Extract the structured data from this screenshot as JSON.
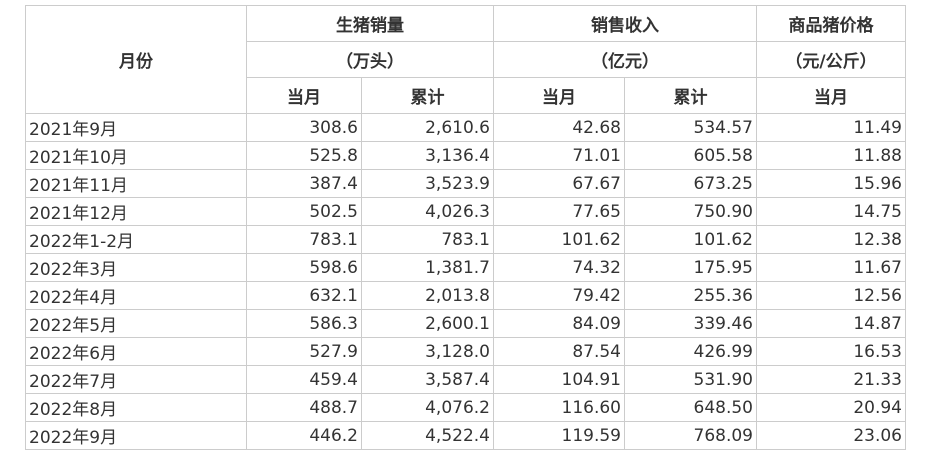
{
  "header": {
    "month": "月份",
    "sales": "生猪销量",
    "sales_unit": "（万头）",
    "revenue": "销售收入",
    "revenue_unit": "（亿元）",
    "price": "商品猪价格",
    "price_unit": "（元/公斤）",
    "current": "当月",
    "cumulative": "累计"
  },
  "rows": [
    [
      "2021年9月",
      "308.6",
      "2,610.6",
      "42.68",
      "534.57",
      "11.49"
    ],
    [
      "2021年10月",
      "525.8",
      "3,136.4",
      "71.01",
      "605.58",
      "11.88"
    ],
    [
      "2021年11月",
      "387.4",
      "3,523.9",
      "67.67",
      "673.25",
      "15.96"
    ],
    [
      "2021年12月",
      "502.5",
      "4,026.3",
      "77.65",
      "750.90",
      "14.75"
    ],
    [
      "2022年1-2月",
      "783.1",
      "783.1",
      "101.62",
      "101.62",
      "12.38"
    ],
    [
      "2022年3月",
      "598.6",
      "1,381.7",
      "74.32",
      "175.95",
      "11.67"
    ],
    [
      "2022年4月",
      "632.1",
      "2,013.8",
      "79.42",
      "255.36",
      "12.56"
    ],
    [
      "2022年5月",
      "586.3",
      "2,600.1",
      "84.09",
      "339.46",
      "14.87"
    ],
    [
      "2022年6月",
      "527.9",
      "3,128.0",
      "87.54",
      "426.99",
      "16.53"
    ],
    [
      "2022年7月",
      "459.4",
      "3,587.4",
      "104.91",
      "531.90",
      "21.33"
    ],
    [
      "2022年8月",
      "488.7",
      "4,076.2",
      "116.60",
      "648.50",
      "20.94"
    ],
    [
      "2022年9月",
      "446.2",
      "4,522.4",
      "119.59",
      "768.09",
      "23.06"
    ]
  ]
}
